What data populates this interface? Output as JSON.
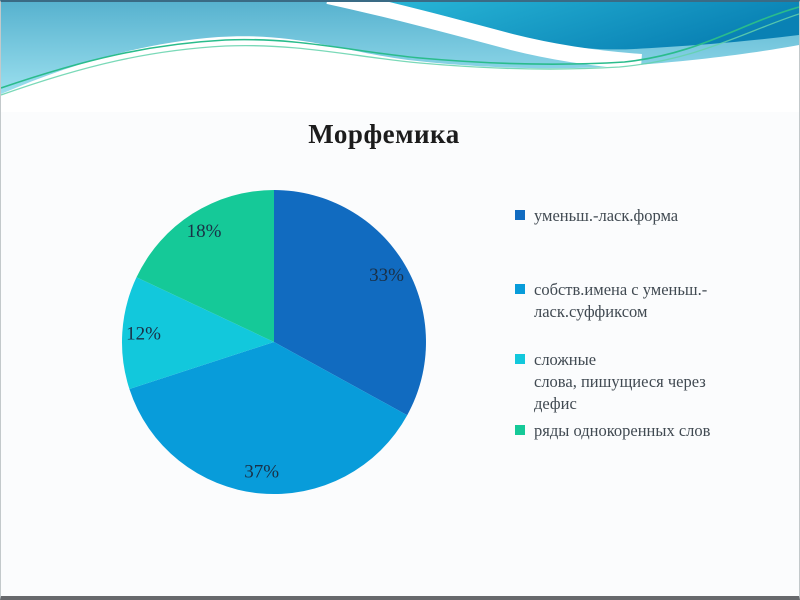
{
  "chart_data": {
    "type": "pie",
    "title": "Морфемика",
    "start_angle_deg": 0,
    "direction": "clockwise",
    "legend_position": "right",
    "data_labels": "percent",
    "total": 100,
    "slices": [
      {
        "legend_label": "уменьш.-ласк.форма",
        "value": 33,
        "percent_label": "33%",
        "color": "#116bc0"
      },
      {
        "legend_label": "собств.имена с уменьш.-\nласк.суффиксом",
        "value": 37,
        "percent_label": "37%",
        "color": "#089cda"
      },
      {
        "legend_label": "сложные\nслова, пишущиеся через\nдефис",
        "value": 12,
        "percent_label": "12%",
        "color": "#12c8dc"
      },
      {
        "legend_label": "ряды однокоренных слов",
        "value": 18,
        "percent_label": "18%",
        "color": "#15c998"
      }
    ]
  }
}
